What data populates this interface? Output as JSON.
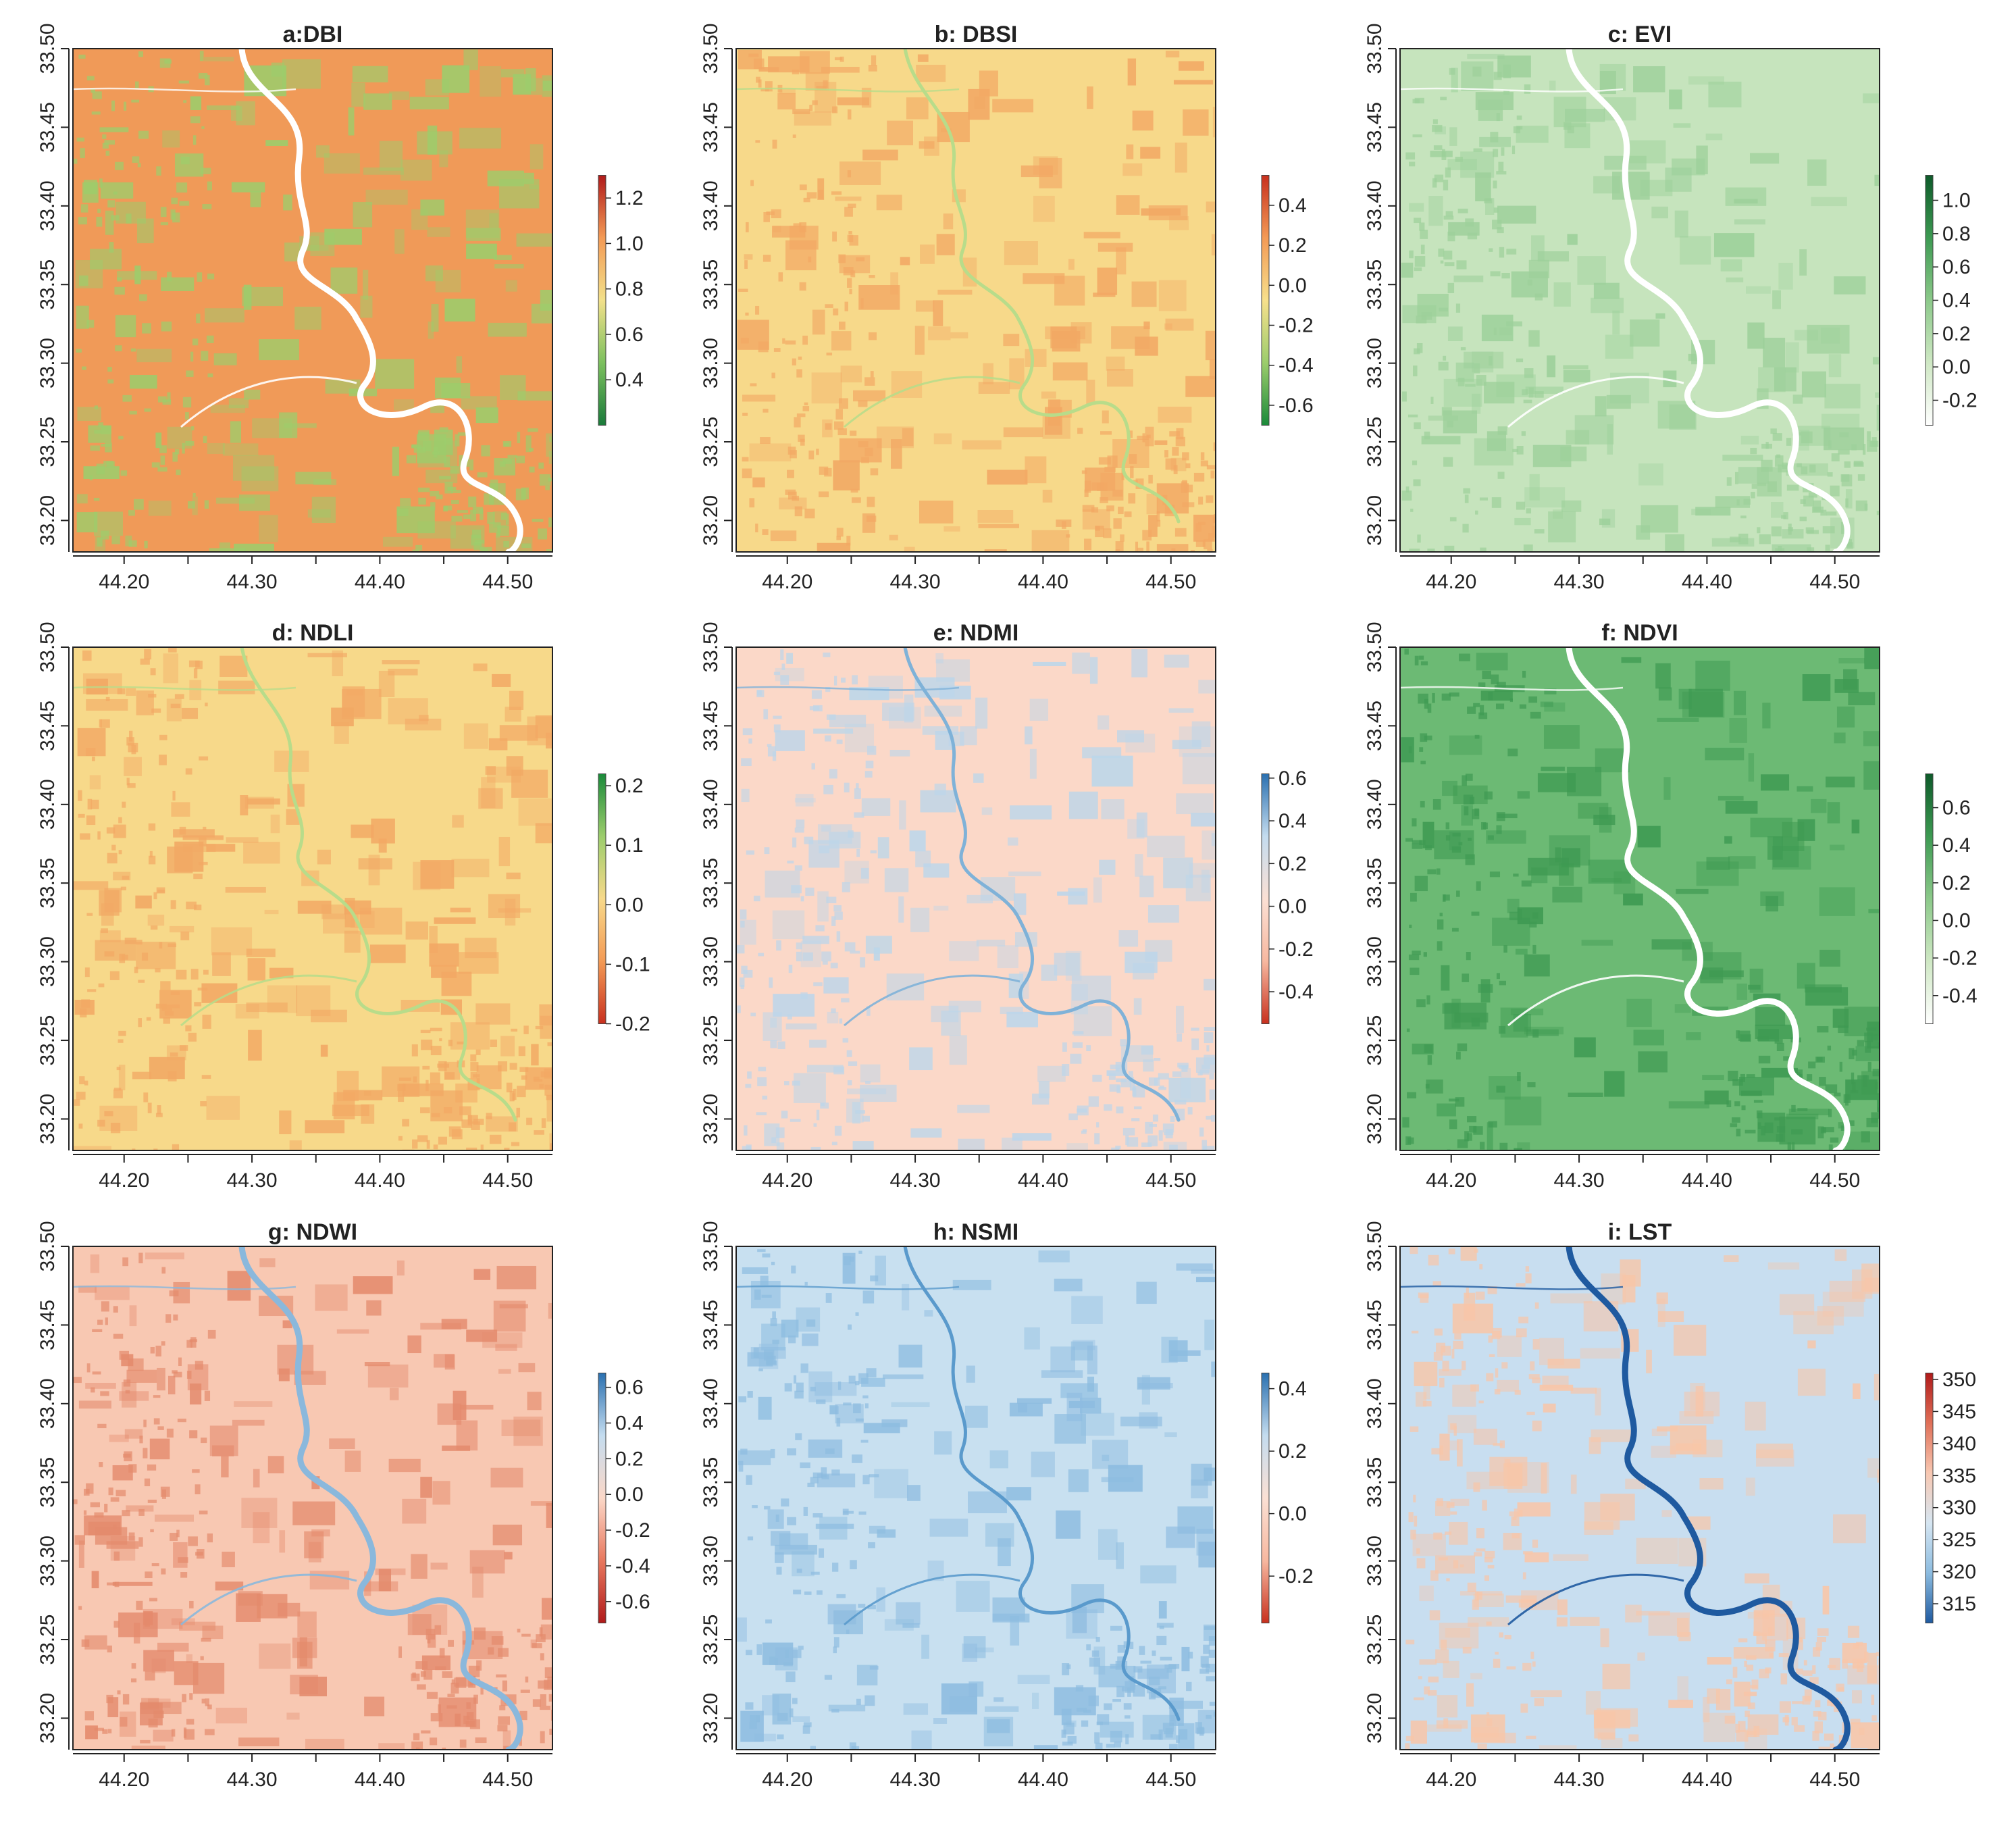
{
  "chart_data": [
    {
      "type": "heatmap",
      "title": "a:DBI",
      "x_ticks": [
        "44.20",
        "44.30",
        "44.40",
        "44.50"
      ],
      "y_ticks": [
        "33.20",
        "33.25",
        "33.30",
        "33.35",
        "33.40",
        "33.45",
        "33.50"
      ],
      "xlim": [
        44.16,
        44.535
      ],
      "ylim": [
        33.18,
        33.5
      ],
      "colorbar": {
        "range": [
          0.2,
          1.3
        ],
        "ticks": [
          "0.4",
          "0.6",
          "0.8",
          "1.0",
          "1.2"
        ],
        "colors": [
          "#1a7a3a",
          "#7cc05e",
          "#f2e08a",
          "#f39a55",
          "#b01a1a"
        ]
      },
      "background_color": "#f09a58",
      "patch_color": "#9ccd6c",
      "river_color": "#ffffff",
      "river_shape": "river-a"
    },
    {
      "type": "heatmap",
      "title": "b: DBSI",
      "x_ticks": [
        "44.20",
        "44.30",
        "44.40",
        "44.50"
      ],
      "y_ticks": [
        "33.20",
        "33.25",
        "33.30",
        "33.35",
        "33.40",
        "33.45",
        "33.50"
      ],
      "xlim": [
        44.16,
        44.535
      ],
      "ylim": [
        33.18,
        33.5
      ],
      "colorbar": {
        "range": [
          -0.7,
          0.55
        ],
        "ticks": [
          "-0.6",
          "-0.4",
          "-0.2",
          "0.0",
          "0.2",
          "0.4"
        ],
        "colors": [
          "#1a8a3a",
          "#9ccd6c",
          "#f7e08c",
          "#f39a55",
          "#c8301e"
        ]
      },
      "background_color": "#f7d98a",
      "patch_color": "#f2a864",
      "river_color": "#b8dc8a",
      "river_shape": "river-b"
    },
    {
      "type": "heatmap",
      "title": "c: EVI",
      "x_ticks": [
        "44.20",
        "44.30",
        "44.40",
        "44.50"
      ],
      "y_ticks": [
        "33.20",
        "33.25",
        "33.30",
        "33.35",
        "33.40",
        "33.45",
        "33.50"
      ],
      "xlim": [
        44.16,
        44.535
      ],
      "ylim": [
        33.18,
        33.5
      ],
      "colorbar": {
        "range": [
          -0.35,
          1.15
        ],
        "ticks": [
          "-0.2",
          "0.0",
          "0.2",
          "0.4",
          "0.6",
          "0.8",
          "1.0"
        ],
        "colors": [
          "#ffffff",
          "#cfe8c4",
          "#8cc98a",
          "#3d9a52",
          "#0e5a2a"
        ]
      },
      "background_color": "#c6e4bd",
      "patch_color": "#9cd09a",
      "river_color": "#ffffff",
      "river_shape": "river-a"
    },
    {
      "type": "heatmap",
      "title": "d: NDLI",
      "x_ticks": [
        "44.20",
        "44.30",
        "44.40",
        "44.50"
      ],
      "y_ticks": [
        "33.20",
        "33.25",
        "33.30",
        "33.35",
        "33.40",
        "33.45",
        "33.50"
      ],
      "xlim": [
        44.16,
        44.535
      ],
      "ylim": [
        33.18,
        33.5
      ],
      "colorbar": {
        "range": [
          -0.2,
          0.22
        ],
        "ticks": [
          "-0.2",
          "-0.1",
          "0.0",
          "0.1",
          "0.2"
        ],
        "colors": [
          "#c8301e",
          "#f39a55",
          "#f7d98a",
          "#9ccd6c",
          "#1a8a3a"
        ]
      },
      "background_color": "#f7d98a",
      "patch_color": "#f2a864",
      "river_color": "#b8dc8a",
      "river_shape": "river-b"
    },
    {
      "type": "heatmap",
      "title": "e: NDMI",
      "x_ticks": [
        "44.20",
        "44.30",
        "44.40",
        "44.50"
      ],
      "y_ticks": [
        "33.20",
        "33.25",
        "33.30",
        "33.35",
        "33.40",
        "33.45",
        "33.50"
      ],
      "xlim": [
        44.16,
        44.535
      ],
      "ylim": [
        33.18,
        33.5
      ],
      "colorbar": {
        "range": [
          -0.55,
          0.62
        ],
        "ticks": [
          "-0.4",
          "-0.2",
          "0.0",
          "0.2",
          "0.4",
          "0.6"
        ],
        "colors": [
          "#c8301e",
          "#f7b8a0",
          "#fbe0d4",
          "#c4dcef",
          "#2a70b0"
        ]
      },
      "background_color": "#fbd8c8",
      "patch_color": "#bcd6ea",
      "river_color": "#7fb2d8",
      "river_shape": "river-b"
    },
    {
      "type": "heatmap",
      "title": "f: NDVI",
      "x_ticks": [
        "44.20",
        "44.30",
        "44.40",
        "44.50"
      ],
      "y_ticks": [
        "33.20",
        "33.25",
        "33.30",
        "33.35",
        "33.40",
        "33.45",
        "33.50"
      ],
      "xlim": [
        44.16,
        44.535
      ],
      "ylim": [
        33.18,
        33.5
      ],
      "colorbar": {
        "range": [
          -0.55,
          0.78
        ],
        "ticks": [
          "-0.4",
          "-0.2",
          "0.0",
          "0.2",
          "0.4",
          "0.6"
        ],
        "colors": [
          "#ffffff",
          "#cfe8c4",
          "#8cc98a",
          "#3d9a52",
          "#0e5a2a"
        ]
      },
      "background_color": "#6cba74",
      "patch_color": "#3e9a52",
      "river_color": "#ffffff",
      "river_shape": "river-a"
    },
    {
      "type": "heatmap",
      "title": "g: NDWI",
      "x_ticks": [
        "44.20",
        "44.30",
        "44.40",
        "44.50"
      ],
      "y_ticks": [
        "33.20",
        "33.25",
        "33.30",
        "33.35",
        "33.40",
        "33.45",
        "33.50"
      ],
      "xlim": [
        44.16,
        44.535
      ],
      "ylim": [
        33.18,
        33.5
      ],
      "colorbar": {
        "range": [
          -0.72,
          0.68
        ],
        "ticks": [
          "-0.6",
          "-0.4",
          "-0.2",
          "0.0",
          "0.2",
          "0.4",
          "0.6"
        ],
        "colors": [
          "#b01a1a",
          "#e8785e",
          "#fbd8c8",
          "#c4dcef",
          "#2a70b0"
        ]
      },
      "background_color": "#f8c8b2",
      "patch_color": "#e48a6c",
      "river_color": "#8ab8dc",
      "river_shape": "river-a"
    },
    {
      "type": "heatmap",
      "title": "h: NSMI",
      "x_ticks": [
        "44.20",
        "44.30",
        "44.40",
        "44.50"
      ],
      "y_ticks": [
        "33.20",
        "33.25",
        "33.30",
        "33.35",
        "33.40",
        "33.45",
        "33.50"
      ],
      "xlim": [
        44.16,
        44.535
      ],
      "ylim": [
        33.18,
        33.5
      ],
      "colorbar": {
        "range": [
          -0.35,
          0.45
        ],
        "ticks": [
          "-0.2",
          "0.0",
          "0.2",
          "0.4"
        ],
        "colors": [
          "#c8301e",
          "#f7b8a0",
          "#fbe0d4",
          "#c4dcef",
          "#2a70b0"
        ]
      },
      "background_color": "#c8e0f0",
      "patch_color": "#8dbce0",
      "river_color": "#5a9acc",
      "river_shape": "river-b"
    },
    {
      "type": "heatmap",
      "title": "i: LST",
      "x_ticks": [
        "44.20",
        "44.30",
        "44.40",
        "44.50"
      ],
      "y_ticks": [
        "33.20",
        "33.25",
        "33.30",
        "33.35",
        "33.40",
        "33.45",
        "33.50"
      ],
      "xlim": [
        44.16,
        44.535
      ],
      "ylim": [
        33.18,
        33.5
      ],
      "colorbar": {
        "range": [
          312,
          351
        ],
        "ticks": [
          "315",
          "320",
          "325",
          "330",
          "335",
          "340",
          "345",
          "350"
        ],
        "colors": [
          "#1f5aa0",
          "#8cbce0",
          "#d6e6f2",
          "#f8c8b2",
          "#e07058",
          "#b01a1a"
        ]
      },
      "background_color": "#c8def0",
      "patch_color": "#f8c6a8",
      "river_color": "#1f5aa0",
      "river_shape": "river-a"
    }
  ]
}
